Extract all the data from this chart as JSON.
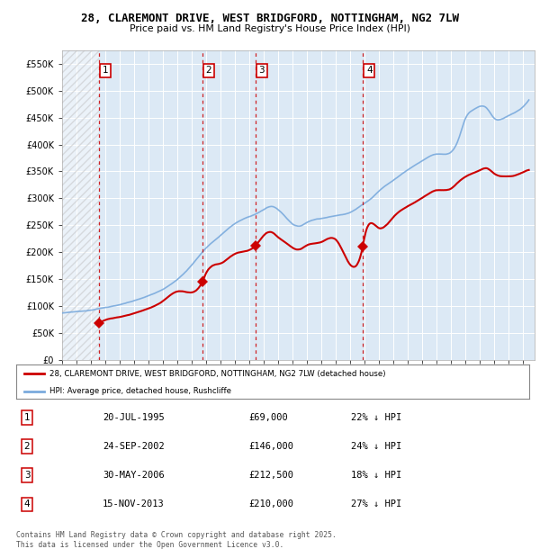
{
  "title_line1": "28, CLAREMONT DRIVE, WEST BRIDGFORD, NOTTINGHAM, NG2 7LW",
  "title_line2": "Price paid vs. HM Land Registry's House Price Index (HPI)",
  "xlim_start": 1993.0,
  "xlim_end": 2025.8,
  "ylim_min": 0,
  "ylim_max": 575000,
  "yticks": [
    0,
    50000,
    100000,
    150000,
    200000,
    250000,
    300000,
    350000,
    400000,
    450000,
    500000,
    550000
  ],
  "ytick_labels": [
    "£0",
    "£50K",
    "£100K",
    "£150K",
    "£200K",
    "£250K",
    "£300K",
    "£350K",
    "£400K",
    "£450K",
    "£500K",
    "£550K"
  ],
  "bg_color": "#dce9f5",
  "hatch_end_year": 1995.55,
  "sale_points": [
    {
      "date_dec": 1995.55,
      "price": 69000,
      "label": "1"
    },
    {
      "date_dec": 2002.73,
      "price": 146000,
      "label": "2"
    },
    {
      "date_dec": 2006.41,
      "price": 212500,
      "label": "3"
    },
    {
      "date_dec": 2013.87,
      "price": 210000,
      "label": "4"
    }
  ],
  "legend_line1": "28, CLAREMONT DRIVE, WEST BRIDGFORD, NOTTINGHAM, NG2 7LW (detached house)",
  "legend_line2": "HPI: Average price, detached house, Rushcliffe",
  "table_rows": [
    {
      "num": "1",
      "date": "20-JUL-1995",
      "price": "£69,000",
      "hpi": "22% ↓ HPI"
    },
    {
      "num": "2",
      "date": "24-SEP-2002",
      "price": "£146,000",
      "hpi": "24% ↓ HPI"
    },
    {
      "num": "3",
      "date": "30-MAY-2006",
      "price": "£212,500",
      "hpi": "18% ↓ HPI"
    },
    {
      "num": "4",
      "date": "15-NOV-2013",
      "price": "£210,000",
      "hpi": "27% ↓ HPI"
    }
  ],
  "footer": "Contains HM Land Registry data © Crown copyright and database right 2025.\nThis data is licensed under the Open Government Licence v3.0.",
  "red_line_color": "#cc0000",
  "blue_line_color": "#7aaadd",
  "sale_marker_color": "#cc0000",
  "vline_color": "#cc0000",
  "grid_color": "#ffffff",
  "box_color": "#cc0000",
  "hpi_key_years": [
    1993.0,
    1994,
    1995,
    1996,
    1997,
    1998,
    1999,
    2000,
    2001,
    2002,
    2003,
    2004,
    2004.5,
    2005,
    2006,
    2007,
    2007.5,
    2008,
    2008.5,
    2009,
    2009.5,
    2010,
    2011,
    2012,
    2013,
    2014,
    2014.5,
    2015,
    2016,
    2017,
    2018,
    2019,
    2020,
    2020.5,
    2021,
    2021.5,
    2022,
    2022.5,
    2023,
    2023.5,
    2024,
    2024.5,
    2025.0,
    2025.4
  ],
  "hpi_key_vals": [
    85000,
    88000,
    91000,
    96000,
    101000,
    108000,
    117000,
    130000,
    148000,
    175000,
    207000,
    230000,
    242000,
    252000,
    265000,
    278000,
    284000,
    278000,
    265000,
    252000,
    248000,
    255000,
    263000,
    268000,
    275000,
    292000,
    302000,
    315000,
    335000,
    355000,
    372000,
    385000,
    388000,
    410000,
    450000,
    465000,
    472000,
    468000,
    450000,
    448000,
    455000,
    462000,
    472000,
    485000
  ],
  "red_key_years": [
    1995.55,
    1996,
    1997,
    1998,
    1999,
    2000,
    2001,
    2002.73,
    2003,
    2004,
    2005,
    2006.41,
    2007,
    2007.5,
    2008,
    2008.5,
    2009,
    2009.5,
    2010,
    2011,
    2012,
    2013.87,
    2014,
    2015,
    2016,
    2017,
    2018,
    2019,
    2020,
    2020.5,
    2021,
    2022,
    2022.5,
    2023,
    2023.5,
    2024,
    2024.5,
    2025.0,
    2025.4
  ],
  "red_key_vals": [
    69000,
    74000,
    80000,
    87000,
    96000,
    110000,
    128000,
    146000,
    162000,
    180000,
    198000,
    212500,
    232000,
    238000,
    228000,
    218000,
    208000,
    205000,
    212000,
    218000,
    222000,
    210000,
    228000,
    245000,
    265000,
    285000,
    300000,
    315000,
    318000,
    330000,
    340000,
    352000,
    355000,
    345000,
    340000,
    340000,
    342000,
    348000,
    352000
  ]
}
